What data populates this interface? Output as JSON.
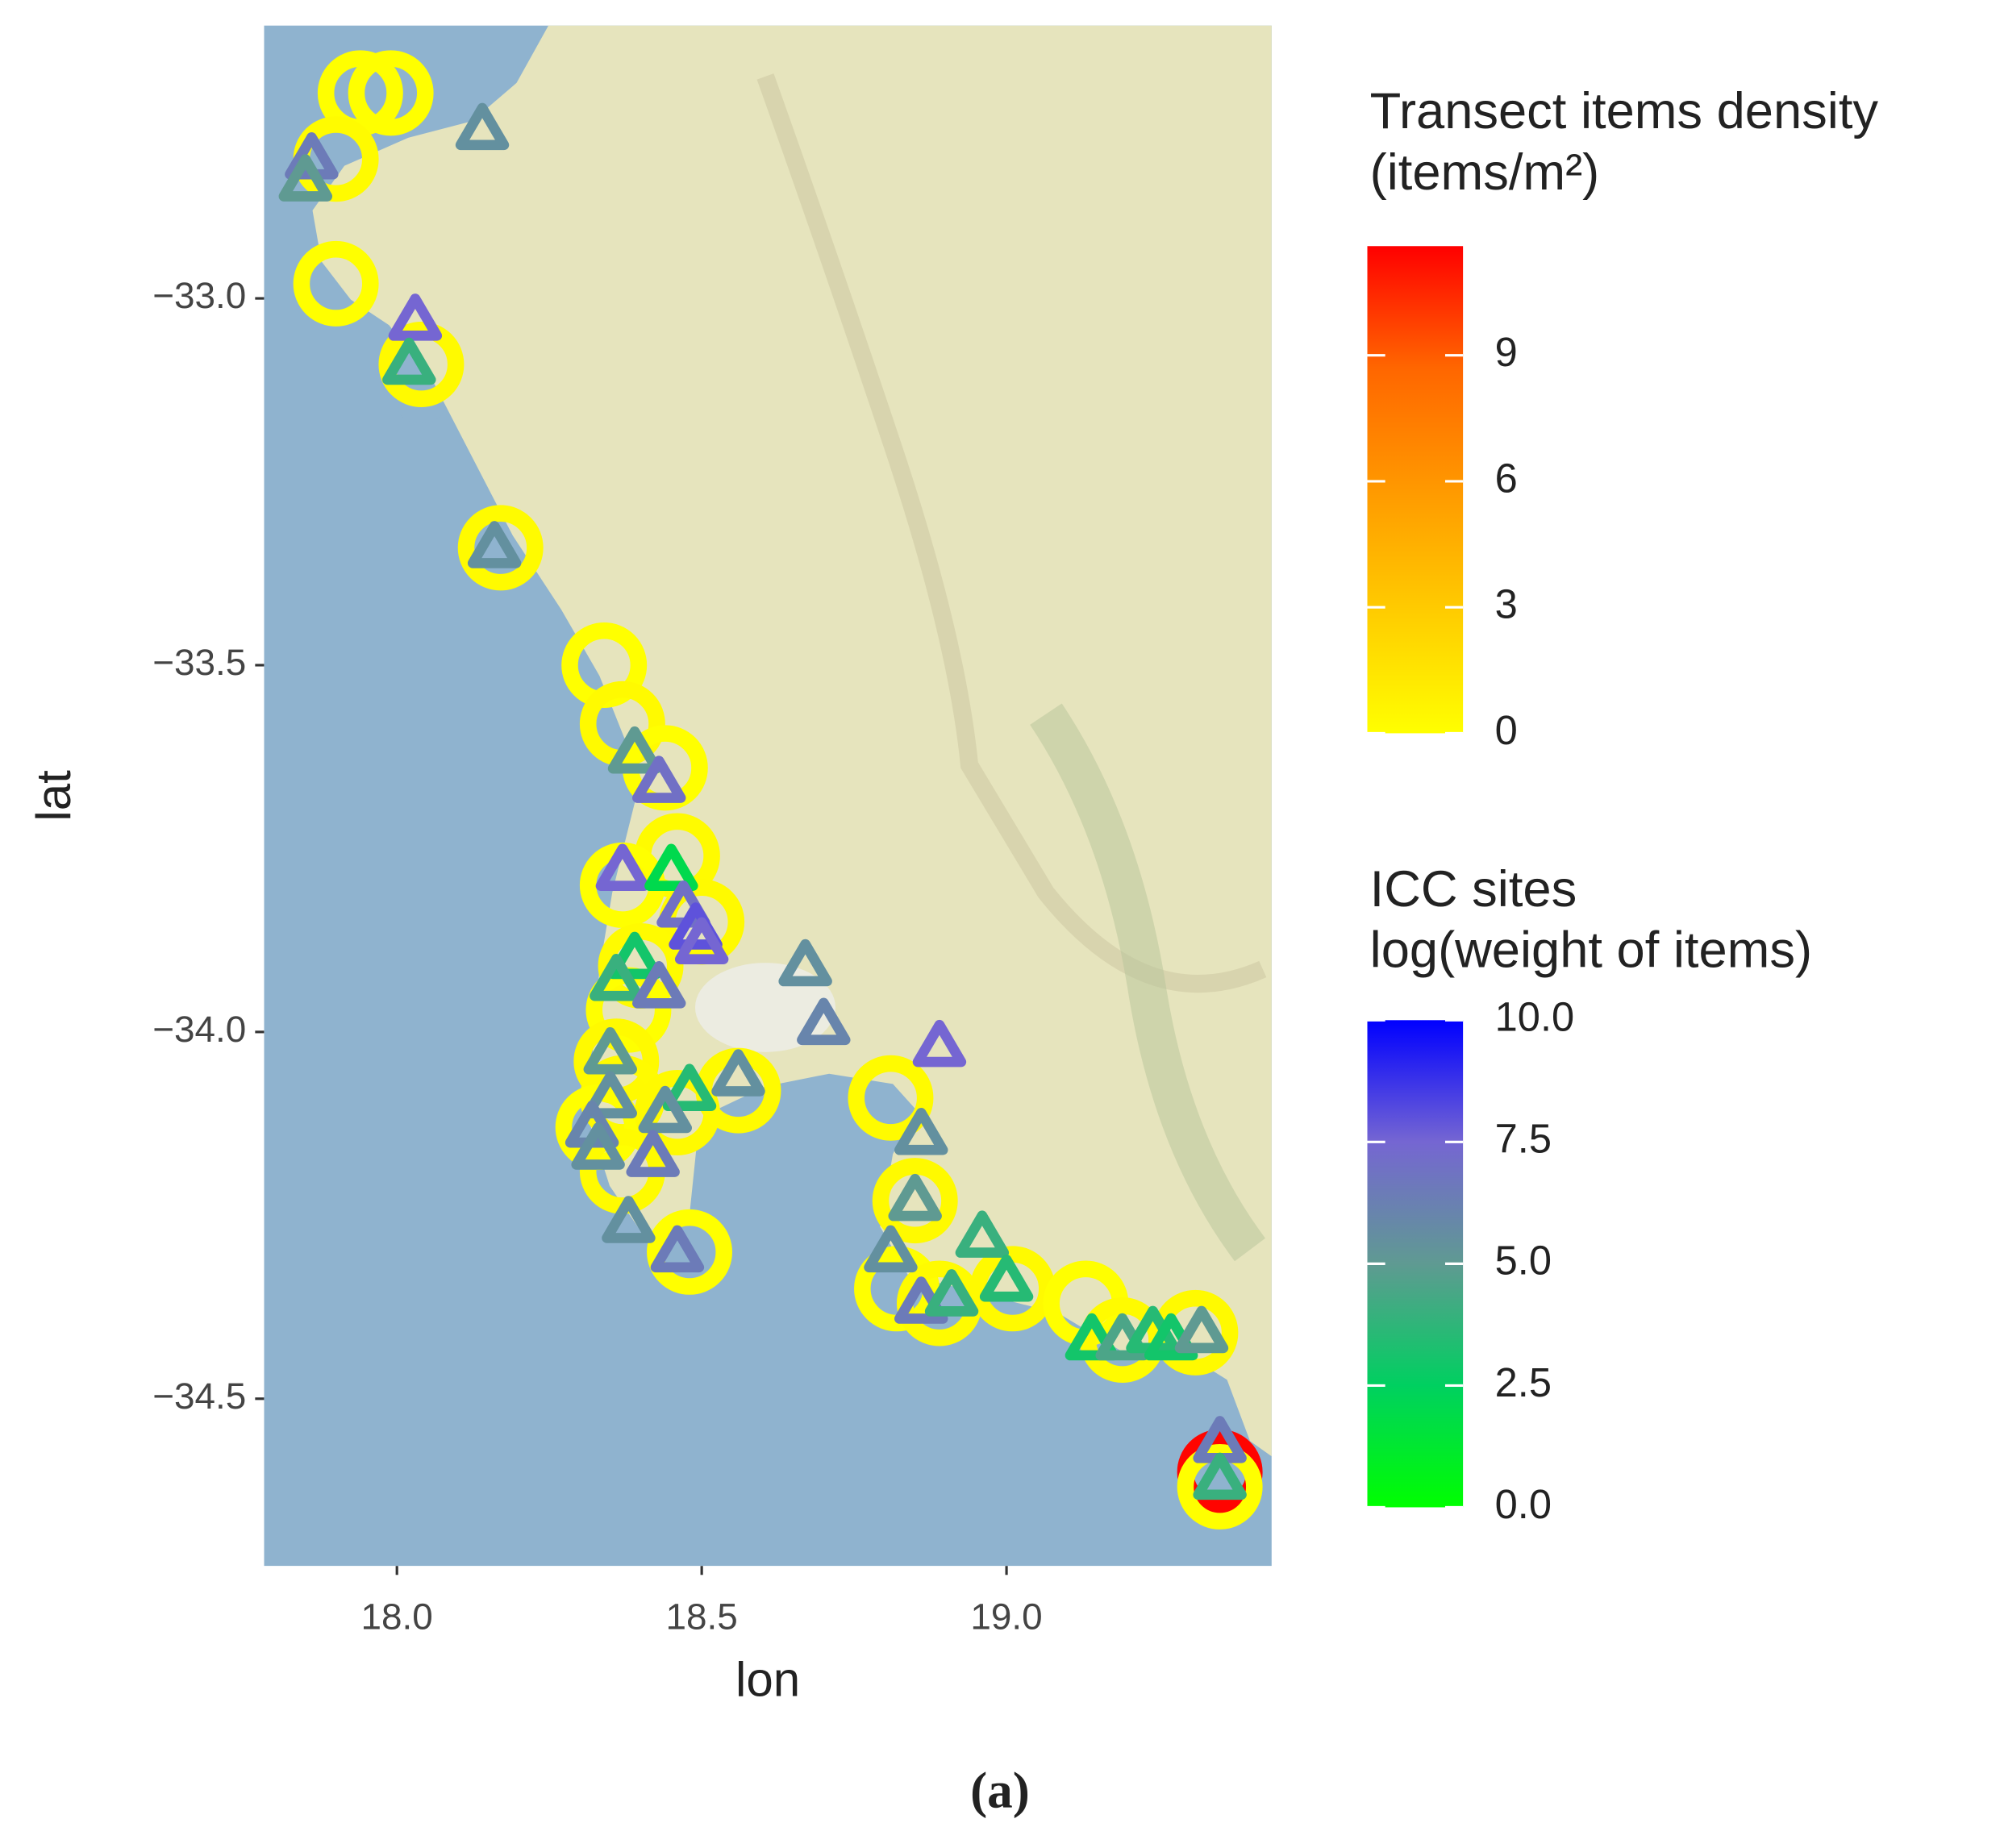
{
  "chart_data": {
    "type": "scatter",
    "xlabel": "lon",
    "ylabel": "lat",
    "caption": "(a)",
    "xlim": [
      17.782,
      19.435
    ],
    "ylim": [
      -34.728,
      -32.628
    ],
    "xticks": [
      {
        "value": 18,
        "label": "18.0"
      },
      18.5,
      {
        "value": 19,
        "label": "19.0"
      }
    ],
    "yticks": [
      {
        "value": -33,
        "label": "−33.0"
      },
      {
        "value": -33.5,
        "label": "−33.5"
      },
      {
        "value": -34,
        "label": "−34.0"
      },
      {
        "value": -34.5,
        "label": "−34.5"
      }
    ],
    "series": [
      {
        "title": [
          "Transect items density",
          "(items/m²)"
        ],
        "marker": "circle",
        "colors": [
          "#ffff00",
          "#ffcc00",
          "#ff9900",
          "#ff6600",
          "#ff0000"
        ],
        "clim": [
          0,
          11.6
        ],
        "cticks": [
          0,
          3,
          6,
          9
        ],
        "x": [
          17.94,
          17.99,
          17.9,
          17.9,
          18.04,
          18.17,
          18.34,
          18.37,
          18.44,
          18.46,
          18.5,
          18.37,
          18.4,
          18.38,
          18.36,
          18.37,
          18.33,
          18.37,
          18.46,
          18.56,
          18.48,
          18.81,
          18.85,
          18.82,
          18.89,
          19.01,
          19.13,
          19.19,
          19.31,
          19.35,
          19.35
        ],
        "y": [
          -32.72,
          -32.72,
          -32.81,
          -32.98,
          -33.09,
          -33.34,
          -33.5,
          -33.58,
          -33.64,
          -33.76,
          -33.85,
          -33.8,
          -33.91,
          -33.97,
          -34.04,
          -34.09,
          -34.13,
          -34.19,
          -34.11,
          -34.08,
          -34.3,
          -34.09,
          -34.23,
          -34.35,
          -34.37,
          -34.35,
          -34.37,
          -34.42,
          -34.41,
          -34.6,
          -34.62
        ],
        "values": [
          0,
          0,
          0.2,
          0,
          0.3,
          0.2,
          0,
          0.3,
          0,
          0.2,
          0.3,
          0,
          0.2,
          0,
          0.3,
          0.2,
          0,
          0.2,
          0.3,
          0.2,
          0,
          0.2,
          0.3,
          0,
          0.2,
          0.3,
          0,
          0.2,
          0.3,
          11.5,
          0
        ]
      },
      {
        "title": [
          "ICC sites",
          " log(weight of items)"
        ],
        "marker": "triangle",
        "colors": [
          "#00ff00",
          "#00d060",
          "#5f9a92",
          "#7566d2",
          "#0000ff"
        ],
        "clim": [
          0,
          10
        ],
        "cticks": [
          {
            "value": 10,
            "label": "10.0"
          },
          7.5,
          {
            "value": 5,
            "label": "5.0"
          },
          2.5,
          {
            "value": 0,
            "label": "0.0"
          }
        ],
        "x": [
          18.14,
          17.86,
          17.85,
          18.03,
          18.02,
          18.16,
          18.39,
          18.43,
          18.37,
          18.45,
          18.47,
          18.49,
          18.5,
          18.39,
          18.36,
          18.43,
          18.67,
          18.7,
          18.89,
          18.35,
          18.35,
          18.32,
          18.33,
          18.48,
          18.44,
          18.42,
          18.56,
          18.38,
          18.46,
          18.86,
          18.85,
          18.81,
          18.86,
          18.91,
          18.96,
          19,
          19.14,
          19.19,
          19.24,
          19.27,
          19.32,
          19.35,
          19.35
        ],
        "y": [
          -32.77,
          -32.81,
          -32.84,
          -33.03,
          -33.09,
          -33.34,
          -33.62,
          -33.66,
          -33.78,
          -33.78,
          -33.83,
          -33.86,
          -33.88,
          -33.9,
          -33.93,
          -33.94,
          -33.91,
          -33.99,
          -34.02,
          -34.03,
          -34.09,
          -34.13,
          -34.16,
          -34.08,
          -34.11,
          -34.17,
          -34.06,
          -34.26,
          -34.3,
          -34.14,
          -34.23,
          -34.3,
          -34.37,
          -34.36,
          -34.28,
          -34.34,
          -34.42,
          -34.42,
          -34.41,
          -34.42,
          -34.41,
          -34.56,
          -34.61
        ],
        "values": [
          5.5,
          6.5,
          5,
          7.5,
          4,
          5.5,
          5,
          7,
          7.5,
          2,
          7,
          8,
          7.5,
          3,
          4,
          6.5,
          5.5,
          6,
          7.5,
          5,
          5.5,
          6,
          5.5,
          3.5,
          5.5,
          6.5,
          5.5,
          5.5,
          6.5,
          5.5,
          5,
          5.5,
          6.5,
          4,
          4,
          3.5,
          3,
          4.5,
          3.5,
          3,
          5,
          6.5,
          4
        ]
      }
    ]
  }
}
